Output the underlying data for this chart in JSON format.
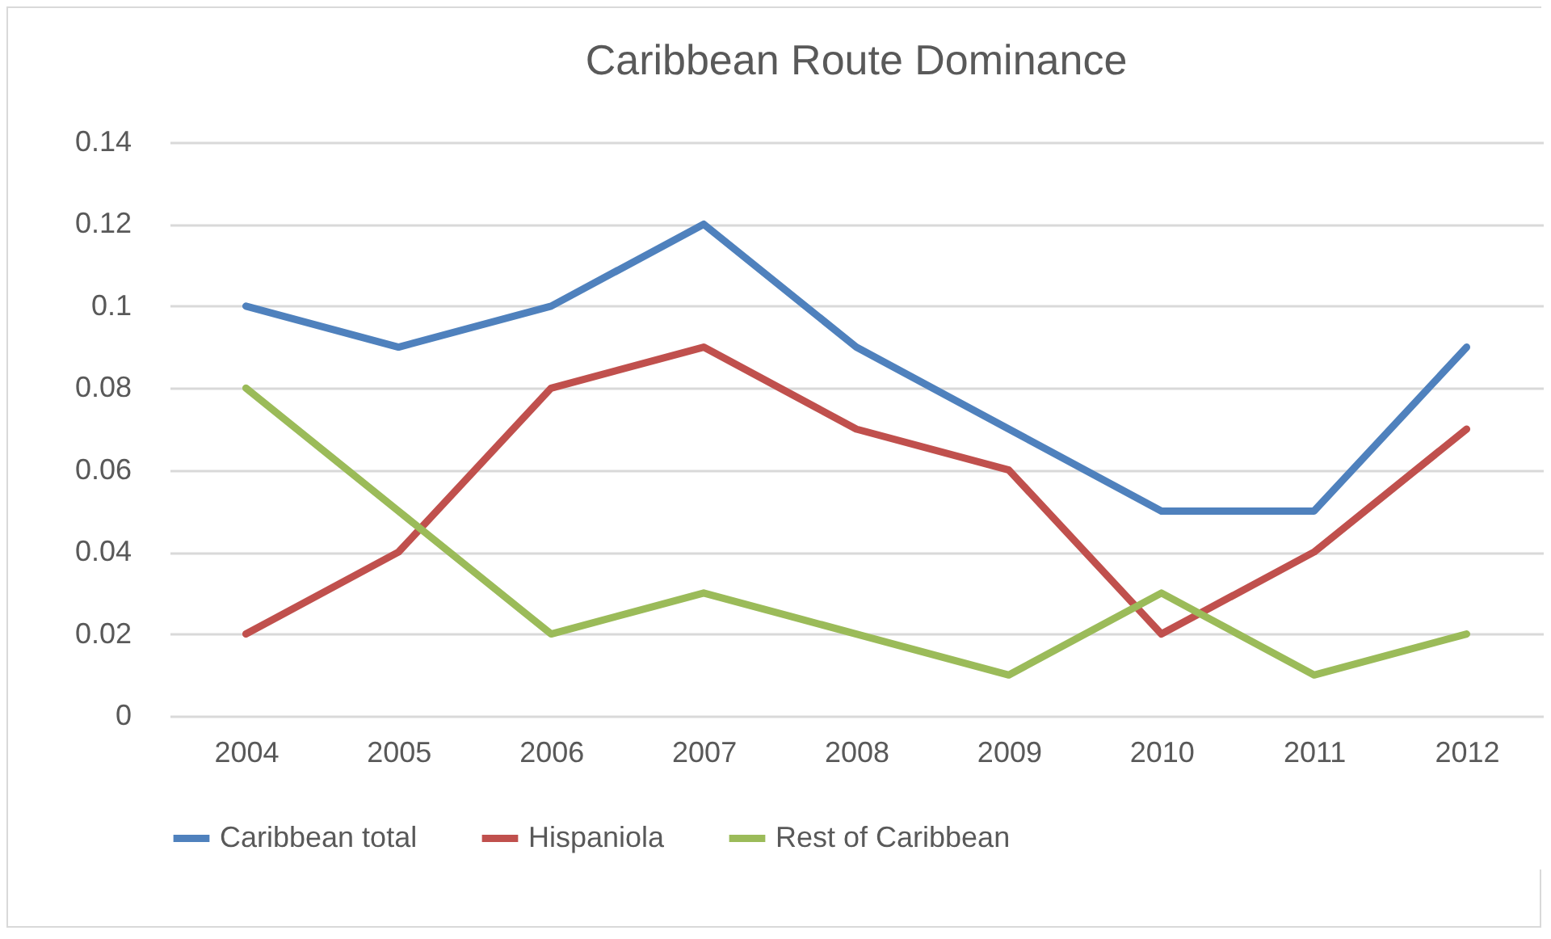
{
  "chart_data": {
    "type": "line",
    "title": "Caribbean Route Dominance",
    "categories": [
      "2004",
      "2005",
      "2006",
      "2007",
      "2008",
      "2009",
      "2010",
      "2011",
      "2012"
    ],
    "series": [
      {
        "name": "Caribbean total",
        "color": "#4f81bd",
        "values": [
          0.1,
          0.09,
          0.1,
          0.12,
          0.09,
          0.07,
          0.05,
          0.05,
          0.09
        ]
      },
      {
        "name": "Hispaniola",
        "color": "#c0504d",
        "values": [
          0.02,
          0.04,
          0.08,
          0.09,
          0.07,
          0.06,
          0.02,
          0.04,
          0.07
        ]
      },
      {
        "name": "Rest of Caribbean",
        "color": "#9bbb59",
        "values": [
          0.08,
          0.05,
          0.02,
          0.03,
          0.02,
          0.01,
          0.03,
          0.01,
          0.02
        ]
      }
    ],
    "ylim": [
      0,
      0.14
    ],
    "yticks": [
      0,
      0.02,
      0.04,
      0.06,
      0.08,
      0.1,
      0.12,
      0.14
    ],
    "grid": "y",
    "legend": "bottom"
  }
}
